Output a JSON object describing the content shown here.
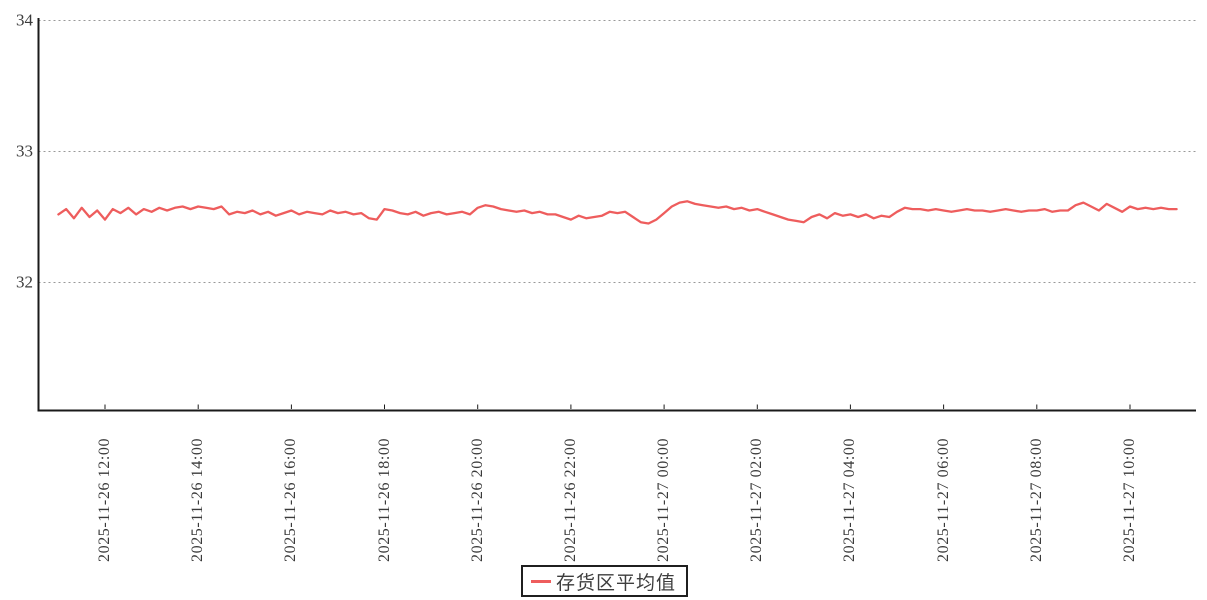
{
  "page": {
    "background": "#ffffff"
  },
  "legend": {
    "label": "存货区平均值",
    "line_color": "#ee5d5d"
  },
  "chart_data": {
    "type": "line",
    "title": "",
    "xlabel": "",
    "ylabel": "",
    "grid": "horizontal-dotted",
    "legend_position": "bottom-center",
    "axis_color": "#1a1a1a",
    "grid_color": "#999999",
    "y_ticks": [
      34,
      33,
      32
    ],
    "ylim": [
      31,
      34.1
    ],
    "x_ticks": [
      {
        "index": 6,
        "label": "2025-11-26 12:00"
      },
      {
        "index": 18,
        "label": "2025-11-26 14:00"
      },
      {
        "index": 30,
        "label": "2025-11-26 16:00"
      },
      {
        "index": 42,
        "label": "2025-11-26 18:00"
      },
      {
        "index": 54,
        "label": "2025-11-26 20:00"
      },
      {
        "index": 66,
        "label": "2025-11-26 22:00"
      },
      {
        "index": 78,
        "label": "2025-11-27 00:00"
      },
      {
        "index": 90,
        "label": "2025-11-27 02:00"
      },
      {
        "index": 102,
        "label": "2025-11-27 04:00"
      },
      {
        "index": 114,
        "label": "2025-11-27 06:00"
      },
      {
        "index": 126,
        "label": "2025-11-27 08:00"
      },
      {
        "index": 138,
        "label": "2025-11-27 10:00"
      }
    ],
    "series": [
      {
        "name": "存货区平均值",
        "color": "#ee5d5d",
        "x_start": "2025-11-26 11:00",
        "x_step_minutes": 10,
        "values": [
          32.52,
          32.56,
          32.49,
          32.57,
          32.5,
          32.55,
          32.48,
          32.56,
          32.53,
          32.57,
          32.52,
          32.56,
          32.54,
          32.57,
          32.55,
          32.57,
          32.58,
          32.56,
          32.58,
          32.57,
          32.56,
          32.58,
          32.52,
          32.54,
          32.53,
          32.55,
          32.52,
          32.54,
          32.51,
          32.53,
          32.55,
          32.52,
          32.54,
          32.53,
          32.52,
          32.55,
          32.53,
          32.54,
          32.52,
          32.53,
          32.49,
          32.48,
          32.56,
          32.55,
          32.53,
          32.52,
          32.54,
          32.51,
          32.53,
          32.54,
          32.52,
          32.53,
          32.54,
          32.52,
          32.57,
          32.59,
          32.58,
          32.56,
          32.55,
          32.54,
          32.55,
          32.53,
          32.54,
          32.52,
          32.52,
          32.5,
          32.48,
          32.51,
          32.49,
          32.5,
          32.51,
          32.54,
          32.53,
          32.54,
          32.5,
          32.46,
          32.45,
          32.48,
          32.53,
          32.58,
          32.61,
          32.62,
          32.6,
          32.59,
          32.58,
          32.57,
          32.58,
          32.56,
          32.57,
          32.55,
          32.56,
          32.54,
          32.52,
          32.5,
          32.48,
          32.47,
          32.46,
          32.5,
          32.52,
          32.49,
          32.53,
          32.51,
          32.52,
          32.5,
          32.52,
          32.49,
          32.51,
          32.5,
          32.54,
          32.57,
          32.56,
          32.56,
          32.55,
          32.56,
          32.55,
          32.54,
          32.55,
          32.56,
          32.55,
          32.55,
          32.54,
          32.55,
          32.56,
          32.55,
          32.54,
          32.55,
          32.55,
          32.56,
          32.54,
          32.55,
          32.55,
          32.59,
          32.61,
          32.58,
          32.55,
          32.6,
          32.57,
          32.54,
          32.58,
          32.56,
          32.57,
          32.56,
          32.57,
          32.56,
          32.56
        ]
      }
    ]
  }
}
